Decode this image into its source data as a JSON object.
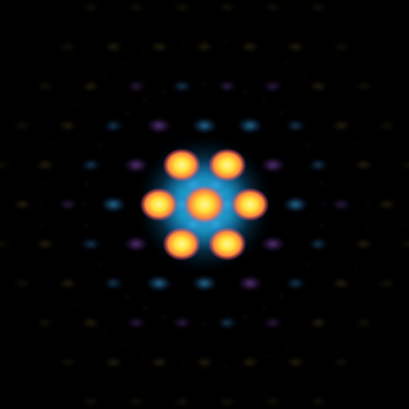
{
  "image": {
    "subject": "hexagonal-diffraction-pattern",
    "background_color": "#000000",
    "palette": {
      "spot_core": "#ffe43a",
      "spot_edge": "#ff4a7a",
      "halo": "#22c8f0",
      "outer_ring_a": "#2aa6e0",
      "outer_ring_b": "#7a4ab8",
      "faint_ring": "#8a7a3a"
    },
    "rings": [
      {
        "name": "center",
        "spots": 1,
        "intensity": 1.0
      },
      {
        "name": "first",
        "spots": 6,
        "intensity": 0.95
      },
      {
        "name": "second",
        "spots": 12,
        "intensity": 0.45
      },
      {
        "name": "third",
        "spots": 18,
        "intensity": 0.22
      },
      {
        "name": "fourth",
        "spots": 24,
        "intensity": 0.1
      }
    ]
  }
}
